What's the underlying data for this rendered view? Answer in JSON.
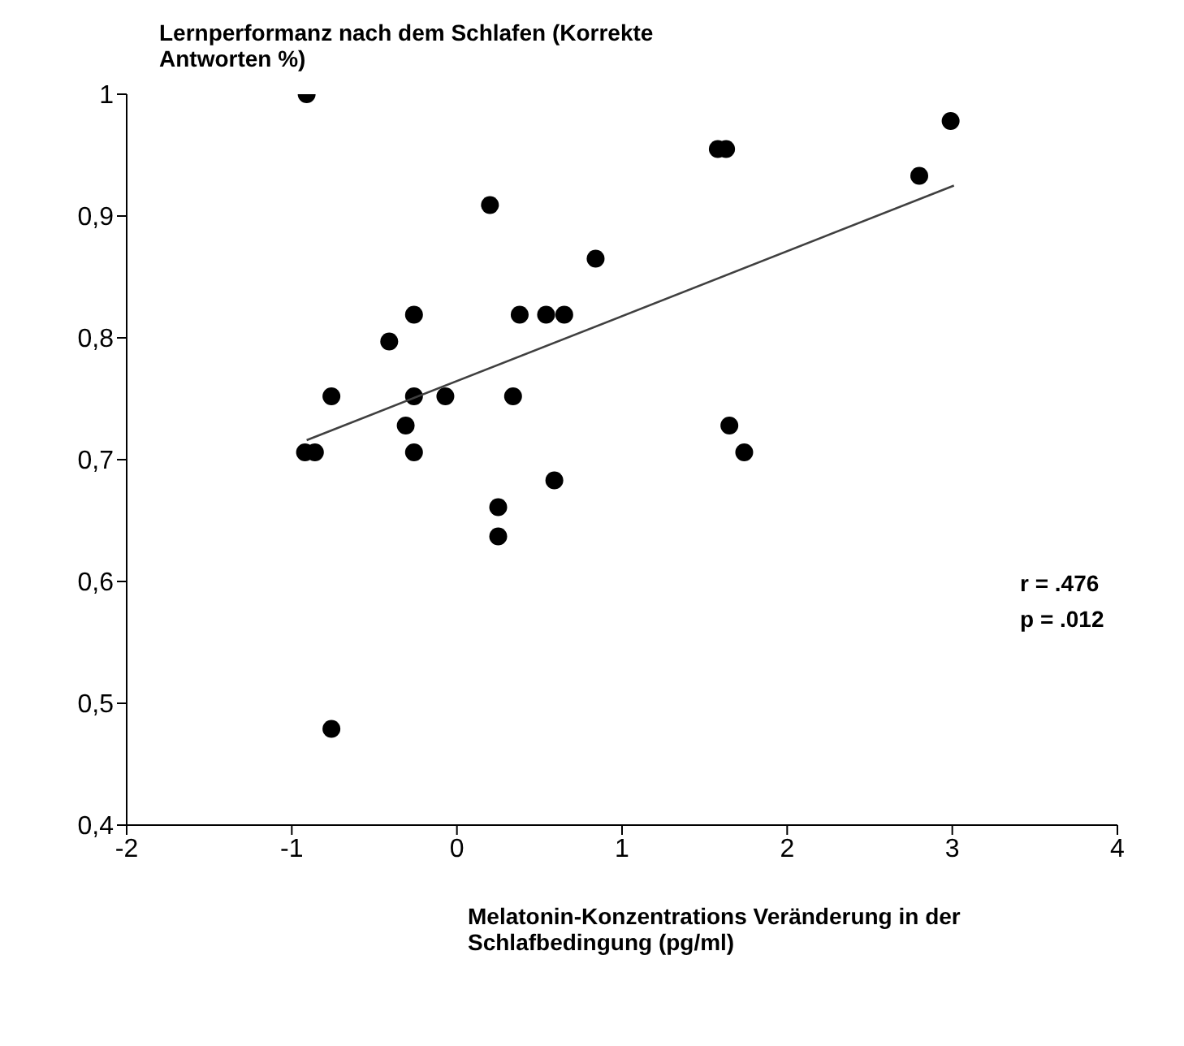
{
  "chart_data": {
    "type": "scatter",
    "ylabel": "Lernperformanz nach dem Schlafen (Korrekte Antworten %)",
    "xlabel": "Melatonin-Konzentrations Veränderung in der Schlafbedingung  (pg/ml)",
    "annotations": [
      "r = .476",
      "p = .012"
    ],
    "xlim": [
      -2,
      4
    ],
    "xticks": [
      -2,
      -1,
      0,
      1,
      2,
      3,
      4
    ],
    "ylim": [
      0.4,
      1
    ],
    "yticks": [
      {
        "value": 0.4,
        "label": "0,4"
      },
      {
        "value": 0.5,
        "label": "0,5"
      },
      {
        "value": 0.6,
        "label": "0,6"
      },
      {
        "value": 0.7,
        "label": "0,7"
      },
      {
        "value": 0.8,
        "label": "0,8"
      },
      {
        "value": 0.9,
        "label": "0,9"
      },
      {
        "value": 1,
        "label": "1"
      }
    ],
    "grid": false,
    "legend": false,
    "marker": "circle",
    "series": [
      {
        "type": "scatter",
        "color": "#000000",
        "x": [
          -0.91,
          -0.92,
          -0.86,
          -0.76,
          -0.41,
          -0.26,
          -0.26,
          -0.31,
          -0.26,
          -0.07,
          0.2,
          0.34,
          0.38,
          0.54,
          0.65,
          0.84,
          0.25,
          0.25,
          0.59,
          1.58,
          1.63,
          1.65,
          1.74,
          2.8,
          2.99,
          -0.76
        ],
        "values": [
          1.0,
          0.706,
          0.706,
          0.752,
          0.797,
          0.819,
          0.752,
          0.728,
          0.706,
          0.752,
          0.909,
          0.752,
          0.819,
          0.819,
          0.819,
          0.865,
          0.661,
          0.637,
          0.683,
          0.955,
          0.955,
          0.728,
          0.706,
          0.933,
          0.978,
          0.479
        ]
      },
      {
        "type": "line",
        "color": "#404040",
        "line_style": "solid",
        "marker": "none",
        "x": [
          -0.91,
          3.01
        ],
        "values": [
          0.716,
          0.925
        ]
      }
    ]
  }
}
